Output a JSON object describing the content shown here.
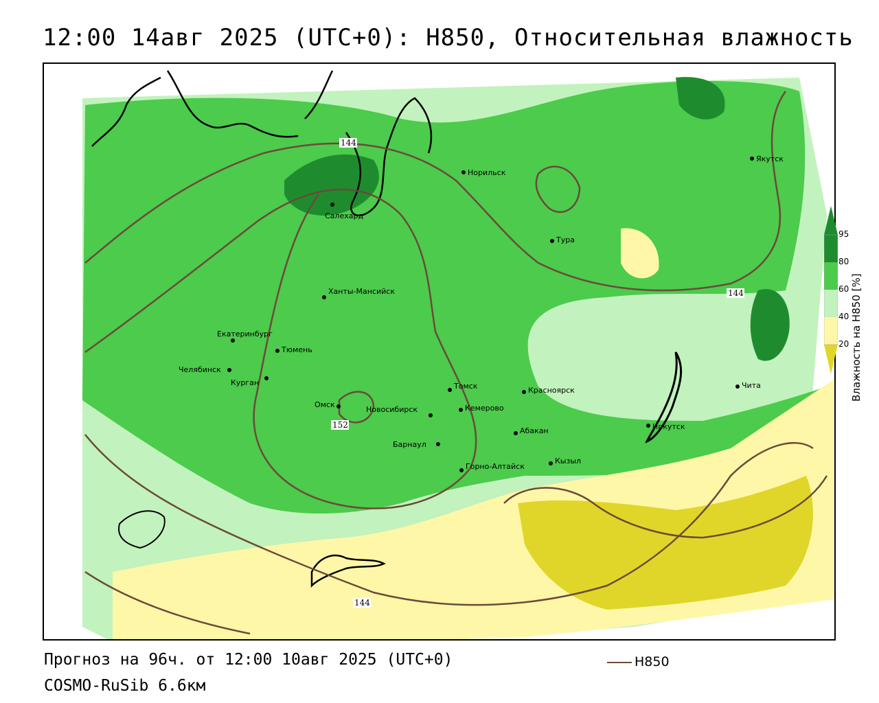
{
  "header": {
    "title": "12:00 14авг 2025 (UTC+0): H850, Относительная влажность"
  },
  "footer": {
    "forecast": "Прогноз на 96ч. от 12:00 10авг 2025 (UTC+0)",
    "model": "COSMO-RuSib 6.6км",
    "line_legend": "H850"
  },
  "colorbar": {
    "title": "Влажность на H850 [%]",
    "ticks": [
      "95",
      "80",
      "60",
      "40",
      "20"
    ],
    "colors": {
      "c95": "#1e8c2e",
      "c80": "#4ccb4c",
      "c60": "#c2f2bd",
      "c40": "#ffffff",
      "c20": "#fff7a8",
      "c0": "#e0d62a"
    }
  },
  "contour_labels": [
    "144",
    "144",
    "144",
    "152"
  ],
  "cities": [
    {
      "name": "Якутск"
    },
    {
      "name": "Норильск"
    },
    {
      "name": "Салехард"
    },
    {
      "name": "Тура"
    },
    {
      "name": "Ханты-Мансийск"
    },
    {
      "name": "Екатеринбург"
    },
    {
      "name": "Тюмень"
    },
    {
      "name": "Челябинск"
    },
    {
      "name": "Курган"
    },
    {
      "name": "Омск"
    },
    {
      "name": "Новосибирск"
    },
    {
      "name": "Томск"
    },
    {
      "name": "Кемерово"
    },
    {
      "name": "Красноярск"
    },
    {
      "name": "Абакан"
    },
    {
      "name": "Барнаул"
    },
    {
      "name": "Горно-Алтайск"
    },
    {
      "name": "Кызыл"
    },
    {
      "name": "Иркутск"
    },
    {
      "name": "Чита"
    }
  ]
}
